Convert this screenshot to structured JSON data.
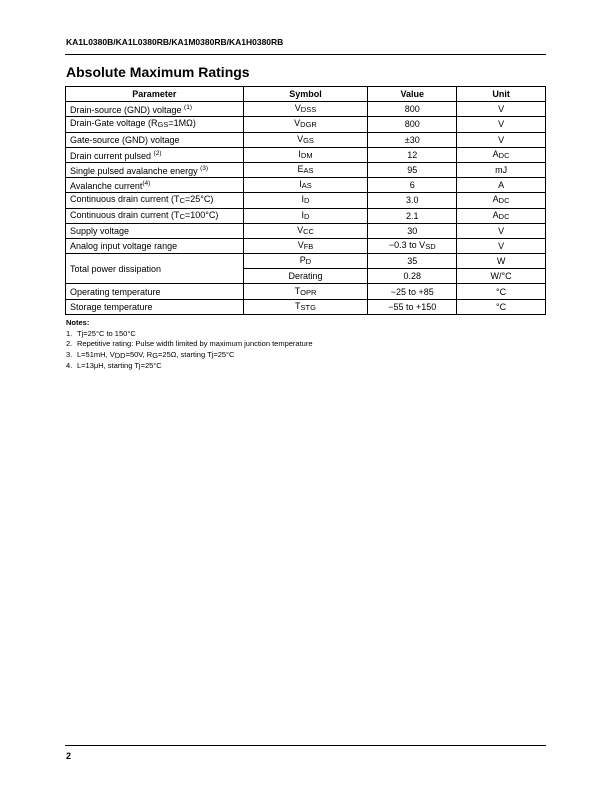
{
  "header": {
    "part_numbers": "KA1L0380B/KA1L0380RB/KA1M0380RB/KA1H0380RB"
  },
  "section_title": "Absolute Maximum Ratings",
  "table": {
    "columns": [
      "Parameter",
      "Symbol",
      "Value",
      "Unit"
    ],
    "rows": [
      {
        "param": [
          [
            "Drain-source (GND) voltage "
          ],
          [
            "(1)",
            "sup"
          ]
        ],
        "symbol": [
          [
            "V"
          ],
          [
            "DSS",
            "sub"
          ]
        ],
        "value": "800",
        "unit": [
          [
            "V"
          ]
        ]
      },
      {
        "param": [
          [
            "Drain-Gate voltage (R"
          ],
          [
            "GS",
            "sub"
          ],
          [
            "=1MΩ)"
          ]
        ],
        "symbol": [
          [
            "V"
          ],
          [
            "DGR",
            "sub"
          ]
        ],
        "value": "800",
        "unit": [
          [
            "V"
          ]
        ]
      },
      {
        "param": [
          [
            "Gate-source (GND) voltage"
          ]
        ],
        "symbol": [
          [
            "V"
          ],
          [
            "GS",
            "sub"
          ]
        ],
        "value": "±30",
        "unit": [
          [
            "V"
          ]
        ]
      },
      {
        "param": [
          [
            "Drain current pulsed "
          ],
          [
            "(2)",
            "sup"
          ]
        ],
        "symbol": [
          [
            "I"
          ],
          [
            "DM",
            "sub"
          ]
        ],
        "value": "12",
        "unit": [
          [
            "A"
          ],
          [
            "DC",
            "sub"
          ]
        ]
      },
      {
        "param": [
          [
            "Single pulsed avalanche energy "
          ],
          [
            "(3)",
            "sup"
          ]
        ],
        "symbol": [
          [
            "E"
          ],
          [
            "AS",
            "sub"
          ]
        ],
        "value": "95",
        "unit": [
          [
            "mJ"
          ]
        ]
      },
      {
        "param": [
          [
            "Avalanche current"
          ],
          [
            "(4)",
            "sup"
          ]
        ],
        "symbol": [
          [
            "I"
          ],
          [
            "AS",
            "sub"
          ]
        ],
        "value": "6",
        "unit": [
          [
            "A"
          ]
        ]
      },
      {
        "param": [
          [
            "Continuous drain current (T"
          ],
          [
            "C",
            "sub"
          ],
          [
            "=25°C)"
          ]
        ],
        "symbol": [
          [
            "I"
          ],
          [
            "D",
            "sub"
          ]
        ],
        "value": "3.0",
        "unit": [
          [
            "A"
          ],
          [
            "DC",
            "sub"
          ]
        ]
      },
      {
        "param": [
          [
            "Continuous drain current (T"
          ],
          [
            "C",
            "sub"
          ],
          [
            "=100°C)"
          ]
        ],
        "symbol": [
          [
            "I"
          ],
          [
            "D",
            "sub"
          ]
        ],
        "value": "2.1",
        "unit": [
          [
            "A"
          ],
          [
            "DC",
            "sub"
          ]
        ]
      },
      {
        "param": [
          [
            "Supply voltage"
          ]
        ],
        "symbol": [
          [
            "V"
          ],
          [
            "CC",
            "sub"
          ]
        ],
        "value": "30",
        "unit": [
          [
            "V"
          ]
        ]
      },
      {
        "param": [
          [
            "Analog input voltage range"
          ]
        ],
        "symbol": [
          [
            "V"
          ],
          [
            "FB",
            "sub"
          ]
        ],
        "value": [
          [
            "−0.3 to V"
          ],
          [
            "SD",
            "sub"
          ]
        ],
        "unit": [
          [
            "V"
          ]
        ]
      },
      {
        "param": [
          [
            "Total power dissipation"
          ]
        ],
        "symbol": [
          [
            "P"
          ],
          [
            "D",
            "sub"
          ]
        ],
        "value": "35",
        "unit": [
          [
            "W"
          ]
        ],
        "span": 2
      },
      {
        "symbol": [
          [
            "Derating"
          ]
        ],
        "value": "0.28",
        "unit": [
          [
            "W/°C"
          ]
        ],
        "cont": true
      },
      {
        "param": [
          [
            "Operating temperature"
          ]
        ],
        "symbol": [
          [
            "T"
          ],
          [
            "OPR",
            "sub"
          ]
        ],
        "value": "−25 to +85",
        "unit": [
          [
            "°C"
          ]
        ]
      },
      {
        "param": [
          [
            "Storage temperature"
          ]
        ],
        "symbol": [
          [
            "T"
          ],
          [
            "STG",
            "sub"
          ]
        ],
        "value": "−55 to +150",
        "unit": [
          [
            "°C"
          ]
        ]
      }
    ]
  },
  "notes": {
    "title": "Notes:",
    "items": [
      [
        [
          "Tj=25°C to 150°C"
        ]
      ],
      [
        [
          "Repetitive rating: Pulse width limited by maximum junction temperature"
        ]
      ],
      [
        [
          "L=51mH, V"
        ],
        [
          "DD",
          "sub"
        ],
        [
          "=50V, R"
        ],
        [
          "G",
          "sub"
        ],
        [
          "=25Ω, starting Tj=25°C"
        ]
      ],
      [
        [
          "L=13μH, starting Tj=25°C"
        ]
      ]
    ]
  },
  "footer": {
    "page_number": "2"
  }
}
